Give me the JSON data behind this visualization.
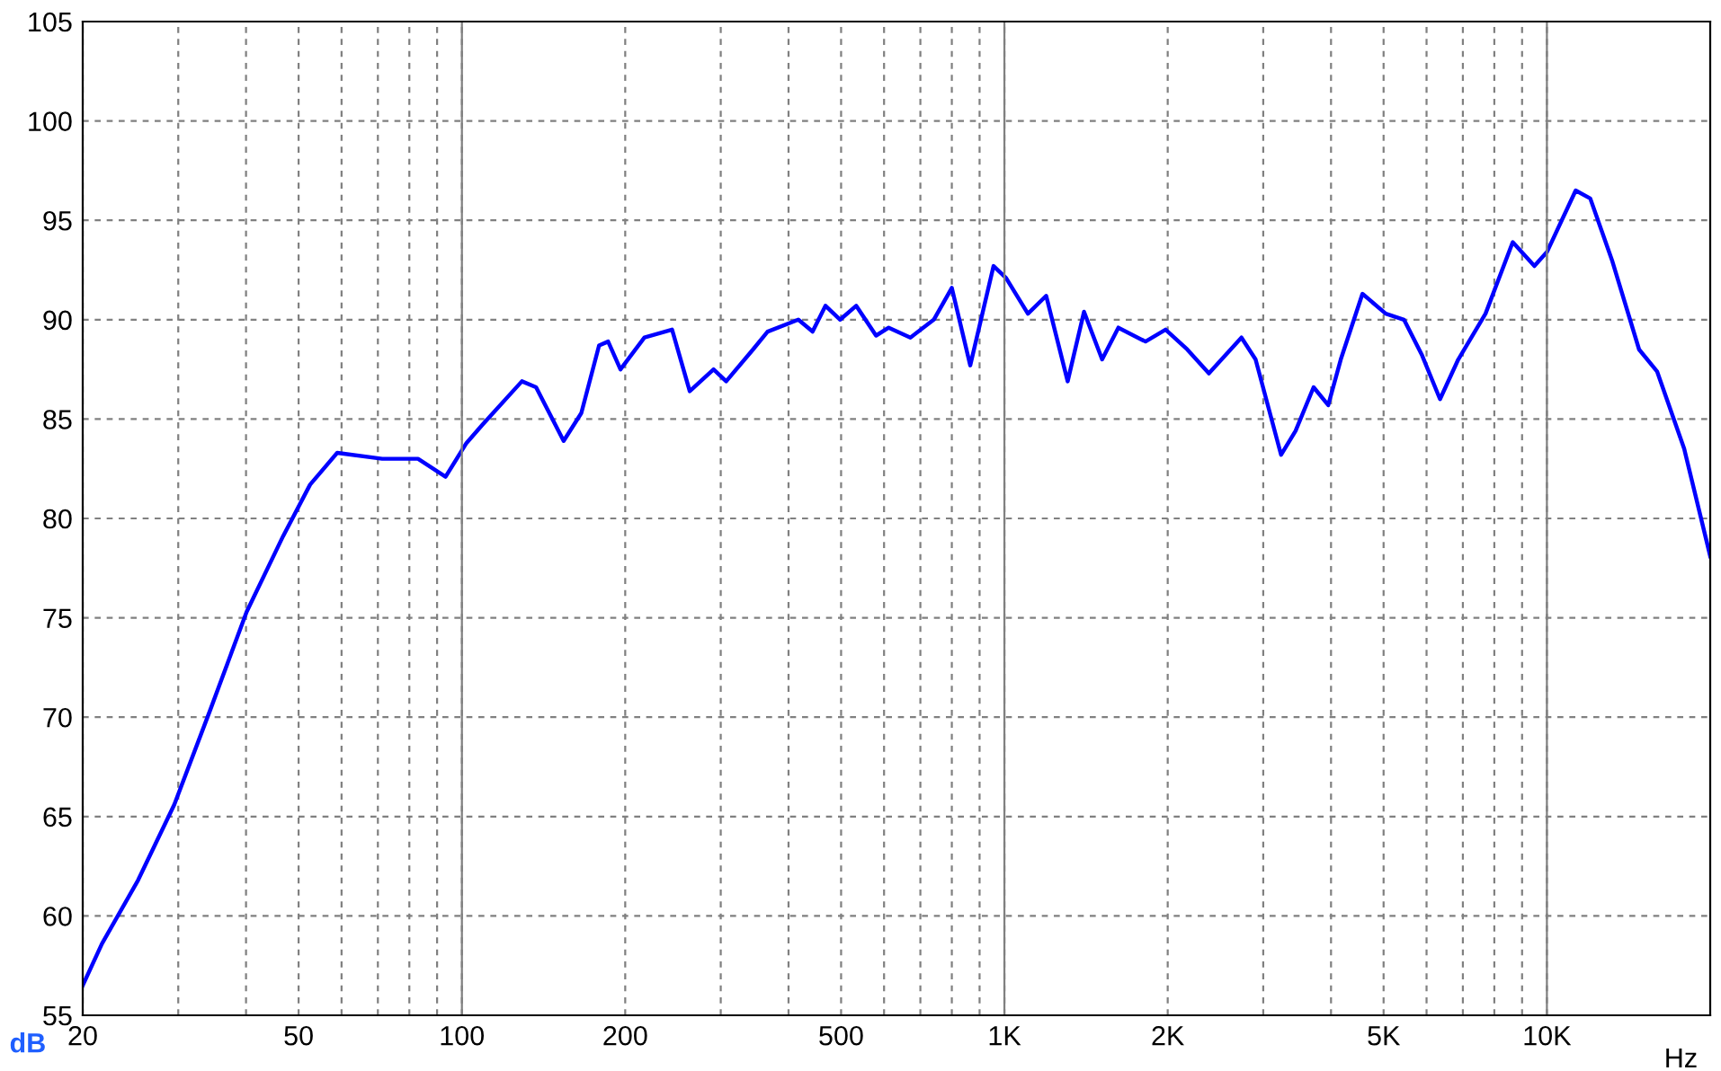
{
  "chart_data": {
    "type": "line",
    "xlabel": "Hz",
    "ylabel": "dB",
    "log": "x",
    "grid": true,
    "line_style": "solid",
    "xlim": [
      20,
      20000
    ],
    "ylim": [
      55,
      105
    ],
    "xticks": [
      20,
      {
        "value": 30,
        "label": null
      },
      {
        "value": 40,
        "label": null
      },
      50,
      {
        "value": 60,
        "label": null
      },
      {
        "value": 70,
        "label": null
      },
      {
        "value": 80,
        "label": null
      },
      {
        "value": 90,
        "label": null
      },
      100,
      200,
      {
        "value": 300,
        "label": null
      },
      {
        "value": 400,
        "label": null
      },
      500,
      {
        "value": 600,
        "label": null
      },
      {
        "value": 700,
        "label": null
      },
      {
        "value": 800,
        "label": null
      },
      {
        "value": 900,
        "label": null
      },
      {
        "value": 1000,
        "label": "1K"
      },
      {
        "value": 2000,
        "label": "2K"
      },
      {
        "value": 3000,
        "label": null
      },
      {
        "value": 4000,
        "label": null
      },
      {
        "value": 5000,
        "label": "5K"
      },
      {
        "value": 6000,
        "label": null
      },
      {
        "value": 7000,
        "label": null
      },
      {
        "value": 8000,
        "label": null
      },
      {
        "value": 9000,
        "label": null
      },
      {
        "value": 10000,
        "label": "10K"
      }
    ],
    "yticks": [
      55,
      60,
      65,
      70,
      75,
      80,
      85,
      90,
      95,
      100,
      105
    ],
    "series": [
      {
        "color": "#0000ff",
        "x": [
          20,
          21.7,
          25.3,
          29.5,
          34.4,
          40.1,
          46.8,
          52.5,
          58.9,
          71.3,
          83,
          93.3,
          102,
          109,
          129,
          137,
          154,
          166,
          179,
          186,
          196,
          217,
          244,
          263,
          291,
          307,
          344,
          366,
          417,
          443,
          468,
          498,
          533,
          580,
          612,
          671,
          741,
          800,
          865,
          955,
          1007,
          1105,
          1194,
          1308,
          1402,
          1514,
          1622,
          1820,
          1982,
          2173,
          2382,
          2735,
          2904,
          3236,
          3441,
          3715,
          3953,
          4169,
          4571,
          5047,
          5452,
          5888,
          6353,
          6865,
          7706,
          8650,
          9483,
          10000,
          11300,
          12020,
          13180,
          14790,
          15960,
          17910,
          20000
        ],
        "values": [
          56.5,
          58.6,
          61.8,
          65.6,
          70.4,
          75.3,
          79.1,
          81.7,
          83.3,
          83.0,
          83.0,
          82.1,
          83.8,
          84.7,
          86.9,
          86.6,
          83.9,
          85.3,
          88.7,
          88.9,
          87.5,
          89.1,
          89.5,
          86.4,
          87.5,
          86.9,
          88.5,
          89.4,
          90.0,
          89.4,
          90.7,
          90.0,
          90.7,
          89.2,
          89.6,
          89.1,
          90.0,
          91.6,
          87.7,
          92.7,
          92.1,
          90.3,
          91.2,
          86.9,
          90.4,
          88.0,
          89.6,
          88.9,
          89.5,
          88.5,
          87.3,
          89.1,
          88.0,
          83.2,
          84.4,
          86.6,
          85.7,
          88.0,
          91.3,
          90.3,
          90.0,
          88.2,
          86.0,
          88.0,
          90.3,
          93.9,
          92.7,
          93.4,
          96.5,
          96.1,
          93.0,
          88.5,
          87.4,
          83.5,
          78.1
        ]
      }
    ]
  }
}
